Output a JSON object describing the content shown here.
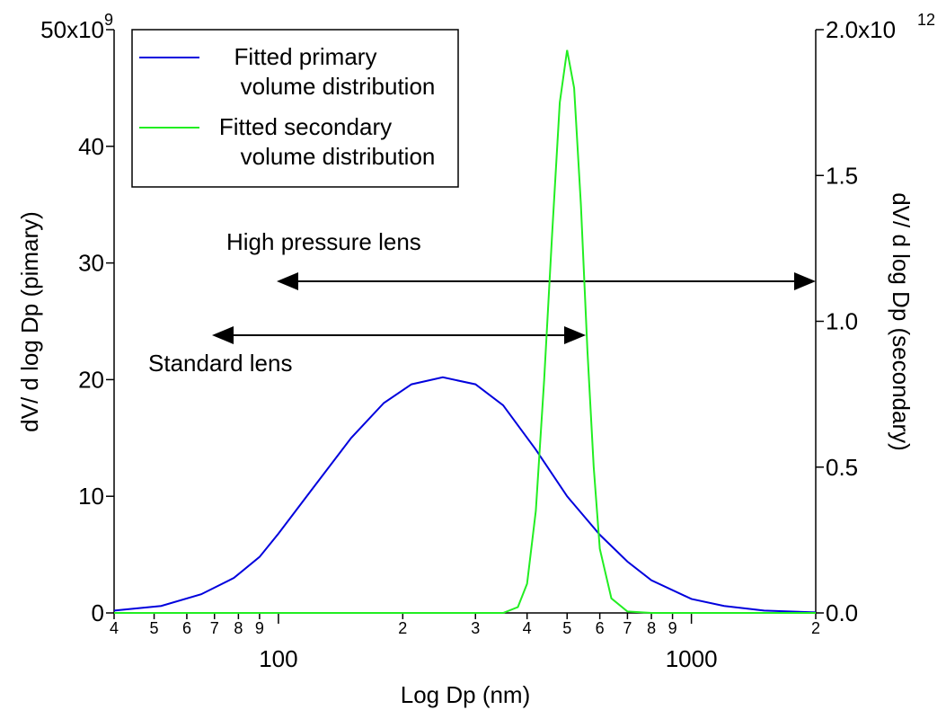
{
  "chart_data": {
    "type": "line",
    "xlabel": "Log Dp (nm)",
    "ylabel": "dV/ d log Dp (pimary)",
    "y2label": "dV/ d log Dp (secondary)",
    "xscale": "log",
    "xlim": [
      40,
      2000
    ],
    "xticks": [
      {
        "value": 40,
        "label": "4"
      },
      {
        "value": 50,
        "label": "5"
      },
      {
        "value": 60,
        "label": "6"
      },
      {
        "value": 70,
        "label": "7"
      },
      {
        "value": 80,
        "label": "8"
      },
      {
        "value": 90,
        "label": "9"
      },
      100,
      {
        "value": 200,
        "label": "2"
      },
      {
        "value": 300,
        "label": "3"
      },
      {
        "value": 400,
        "label": "4"
      },
      {
        "value": 500,
        "label": "5"
      },
      {
        "value": 600,
        "label": "6"
      },
      {
        "value": 700,
        "label": "7"
      },
      {
        "value": 800,
        "label": "8"
      },
      {
        "value": 900,
        "label": "9"
      },
      1000,
      {
        "value": 2000,
        "label": "2"
      }
    ],
    "ylim": [
      0,
      50
    ],
    "yticks": [
      0,
      10,
      20,
      30,
      40,
      {
        "value": 50,
        "label": "50x10"
      }
    ],
    "y_exponent": "9",
    "y2lim": [
      0,
      2
    ],
    "y2ticks": [
      {
        "value": 0,
        "label": "0.0"
      },
      {
        "value": 0.5,
        "label": "0.5"
      },
      {
        "value": 1,
        "label": "1.0"
      },
      {
        "value": 1.5,
        "label": "1.5"
      },
      {
        "value": 2,
        "label": "2.0x10"
      }
    ],
    "y2_exponent": "12",
    "legend": "upper left",
    "annotations": [
      "High pressure lens",
      "Standard lens"
    ],
    "series": [
      {
        "name": "Fitted primary\nvolume distribution",
        "color": "#0000dd",
        "axis": "y",
        "x": [
          40,
          52,
          65,
          78,
          90,
          100,
          120,
          150,
          180,
          210,
          250,
          300,
          350,
          420,
          500,
          600,
          700,
          800,
          1000,
          1200,
          1500,
          2000
        ],
        "values": [
          0.2,
          0.6,
          1.6,
          3.0,
          4.8,
          6.8,
          10.5,
          15,
          18,
          19.6,
          20.2,
          19.6,
          17.8,
          14,
          10,
          6.7,
          4.4,
          2.8,
          1.2,
          0.6,
          0.2,
          0.05
        ]
      },
      {
        "name": "Fitted secondary\nvolume distribution",
        "color": "#22ee22",
        "axis": "y2",
        "x": [
          40,
          350,
          380,
          400,
          420,
          440,
          460,
          480,
          500,
          520,
          540,
          560,
          580,
          600,
          640,
          700,
          800,
          2000
        ],
        "values": [
          0,
          0,
          0.02,
          0.1,
          0.35,
          0.8,
          1.3,
          1.75,
          1.93,
          1.8,
          1.4,
          0.9,
          0.5,
          0.22,
          0.05,
          0.005,
          0,
          0
        ]
      }
    ]
  }
}
